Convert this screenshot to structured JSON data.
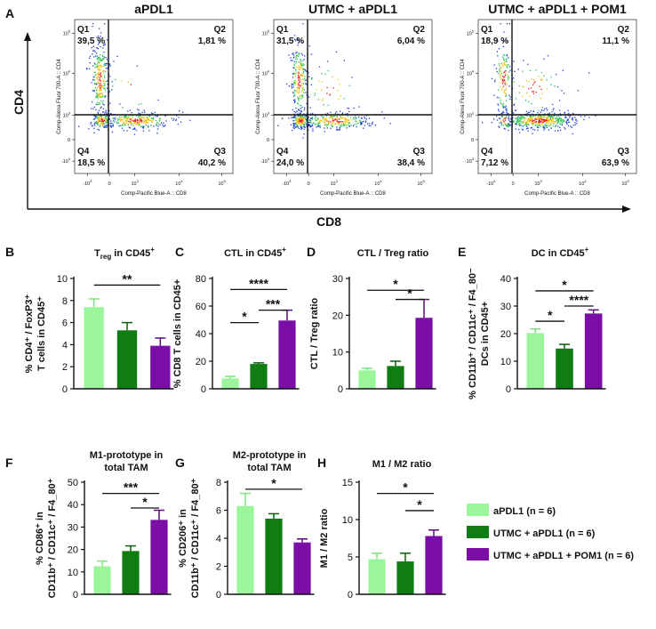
{
  "colors": {
    "light_green": "#9bf59a",
    "dark_green": "#0f7d13",
    "purple": "#7b0ea6",
    "err_light": "#7ee27e",
    "err_dark": "#0a5e0e",
    "err_purple": "#5c0a7d"
  },
  "panel_a": {
    "letter": "A",
    "y_label": "CD4",
    "x_label": "CD8",
    "plot_x_title": "Comp-Pacific Blue-A :: CD8",
    "plot_y_title": "Comp-Alexa Fluor 700-A :: CD4",
    "x_ticks": [
      "-10",
      "0",
      "10",
      "10",
      "10"
    ],
    "x_tick_exps": [
      "3",
      "",
      "3",
      "4",
      "5"
    ],
    "y_ticks": [
      "10",
      "10",
      "10",
      "0",
      "-10"
    ],
    "y_tick_exps": [
      "5",
      "4",
      "3",
      "",
      "3"
    ],
    "plots": [
      {
        "title": "aPDL1",
        "q1": "Q1",
        "q1v": "39,5 %",
        "q2": "Q2",
        "q2v": "1,81 %",
        "q3": "Q3",
        "q3v": "40,2 %",
        "q4": "Q4",
        "q4v": "18,5 %"
      },
      {
        "title": "UTMC + aPDL1",
        "q1": "Q1",
        "q1v": "31,5 %",
        "q2": "Q2",
        "q2v": "6,04 %",
        "q3": "Q3",
        "q3v": "38,4 %",
        "q4": "Q4",
        "q4v": "24,0 %"
      },
      {
        "title": "UTMC + aPDL1 + POM1",
        "q1": "Q1",
        "q1v": "18,9 %",
        "q2": "Q2",
        "q2v": "11,1 %",
        "q3": "Q3",
        "q3v": "63,9 %",
        "q4": "Q4",
        "q4v": "7,12 %"
      }
    ]
  },
  "legend": [
    {
      "label": "aPDL1 (n = 6)",
      "color": "#9bf59a"
    },
    {
      "label": "UTMC + aPDL1 (n = 6)",
      "color": "#0f7d13"
    },
    {
      "label": "UTMC + aPDL1 + POM1 (n = 6)",
      "color": "#7b0ea6"
    }
  ],
  "chart_data": [
    {
      "id": "B",
      "type": "bar",
      "letter": "B",
      "title": "T",
      "title_sub": "reg",
      "title_tail": " in CD45",
      "title_sup": "+",
      "ylabel_line1": "% CD4⁺ / FoxP3⁺",
      "ylabel_line2": "T cells in CD45⁺",
      "ylim": [
        0,
        10
      ],
      "yticks": [
        0,
        2,
        4,
        6,
        8,
        10
      ],
      "ytick_labels": [
        "0",
        "2",
        "4",
        "6",
        "8",
        "10"
      ],
      "categories": [
        "aPDL1",
        "UTMC + aPDL1",
        "UTMC + aPDL1 + POM1"
      ],
      "values": [
        7.4,
        5.3,
        3.9
      ],
      "errors": [
        0.75,
        0.7,
        0.7
      ],
      "sig": [
        {
          "from": 0,
          "to": 2,
          "y": 9.4,
          "label": "**"
        }
      ]
    },
    {
      "id": "C",
      "type": "bar",
      "letter": "C",
      "title": "CTL in CD45",
      "title_sup": "+",
      "ylabel_line1": "% CD8 T cells in CD45+",
      "ylim": [
        0,
        80
      ],
      "yticks": [
        0,
        20,
        40,
        60,
        80
      ],
      "ytick_labels": [
        "0",
        "20",
        "40",
        "60",
        "80"
      ],
      "categories": [
        "aPDL1",
        "UTMC + aPDL1",
        "UTMC + aPDL1 + POM1"
      ],
      "values": [
        7.5,
        18,
        49.5
      ],
      "errors": [
        1.5,
        0.8,
        7.5
      ],
      "sig": [
        {
          "from": 0,
          "to": 2,
          "y": 72,
          "label": "****"
        },
        {
          "from": 0,
          "to": 1,
          "y": 48,
          "label": "*"
        },
        {
          "from": 1,
          "to": 2,
          "y": 57,
          "label": "***"
        }
      ]
    },
    {
      "id": "D",
      "type": "bar",
      "letter": "D",
      "title": "CTL / Treg ratio",
      "ylabel_line1": "CTL / Treg ratio",
      "ylim": [
        0,
        30
      ],
      "yticks": [
        0,
        10,
        20,
        30
      ],
      "ytick_labels": [
        "0",
        "10",
        "20",
        "30"
      ],
      "categories": [
        "aPDL1",
        "UTMC + aPDL1",
        "UTMC + aPDL1 + POM1"
      ],
      "values": [
        5,
        6.2,
        19.3
      ],
      "errors": [
        0.6,
        1.3,
        5.0
      ],
      "sig": [
        {
          "from": 0,
          "to": 2,
          "y": 26.8,
          "label": "*"
        },
        {
          "from": 1,
          "to": 2,
          "y": 24.3,
          "label": "*"
        }
      ]
    },
    {
      "id": "E",
      "type": "bar",
      "letter": "E",
      "title": "DC in CD45",
      "title_sup": "+",
      "ylabel_line1": "% CD11b⁺ / CD11c⁺ / F4_80⁻",
      "ylabel_line2": "DCs in CD45+",
      "ylim": [
        0,
        40
      ],
      "yticks": [
        0,
        10,
        20,
        30,
        40
      ],
      "ytick_labels": [
        "0",
        "10",
        "20",
        "30",
        "40"
      ],
      "categories": [
        "aPDL1",
        "UTMC + aPDL1",
        "UTMC + aPDL1 + POM1"
      ],
      "values": [
        20.2,
        14.6,
        27.3
      ],
      "errors": [
        1.5,
        1.5,
        1.3
      ],
      "sig": [
        {
          "from": 0,
          "to": 2,
          "y": 35.5,
          "label": "*"
        },
        {
          "from": 0,
          "to": 1,
          "y": 24.5,
          "label": "*"
        },
        {
          "from": 1,
          "to": 2,
          "y": 30,
          "label": "****"
        }
      ]
    },
    {
      "id": "F",
      "type": "bar",
      "letter": "F",
      "title": "M1-prototype in",
      "title2": "total TAM",
      "ylabel_line1": "% CD86⁺ in",
      "ylabel_line2": "CD11b⁺ / CD11c⁺ / F4_80⁺",
      "ylim": [
        0,
        50
      ],
      "yticks": [
        0,
        10,
        20,
        30,
        40,
        50
      ],
      "ytick_labels": [
        "0",
        "10",
        "20",
        "30",
        "40",
        "50"
      ],
      "categories": [
        "aPDL1",
        "UTMC + aPDL1",
        "UTMC + aPDL1 + POM1"
      ],
      "values": [
        12.5,
        19.3,
        33.2
      ],
      "errors": [
        2.3,
        2.3,
        4.3
      ],
      "sig": [
        {
          "from": 0,
          "to": 2,
          "y": 45,
          "label": "***"
        },
        {
          "from": 1,
          "to": 2,
          "y": 38.5,
          "label": "*"
        }
      ]
    },
    {
      "id": "G",
      "type": "bar",
      "letter": "G",
      "title": "M2-prototype in",
      "title2": "total TAM",
      "ylabel_line1": "% CD206⁺ in",
      "ylabel_line2": "CD11b⁺ / CD11c⁺ / F4_80⁺",
      "ylim": [
        0,
        8
      ],
      "yticks": [
        0,
        2,
        4,
        6,
        8
      ],
      "ytick_labels": [
        "0",
        "2",
        "4",
        "6",
        "8"
      ],
      "categories": [
        "aPDL1",
        "UTMC + aPDL1",
        "UTMC + aPDL1 + POM1"
      ],
      "values": [
        6.3,
        5.4,
        3.7
      ],
      "errors": [
        0.9,
        0.35,
        0.25
      ],
      "sig": [
        {
          "from": 0,
          "to": 2,
          "y": 7.5,
          "label": "*"
        }
      ]
    },
    {
      "id": "H",
      "type": "bar",
      "letter": "H",
      "title": "M1 / M2 ratio",
      "ylabel_line1": "M1 / M2 ratio",
      "ylim": [
        0,
        15
      ],
      "yticks": [
        0,
        5,
        10,
        15
      ],
      "ytick_labels": [
        "0",
        "5",
        "10",
        "15"
      ],
      "categories": [
        "aPDL1",
        "UTMC + aPDL1",
        "UTMC + aPDL1 + POM1"
      ],
      "values": [
        4.7,
        4.4,
        7.8
      ],
      "errors": [
        0.8,
        1.1,
        0.8
      ],
      "sig": [
        {
          "from": 0,
          "to": 2,
          "y": 13.5,
          "label": "*"
        },
        {
          "from": 1,
          "to": 2,
          "y": 11.2,
          "label": "*"
        }
      ]
    }
  ]
}
